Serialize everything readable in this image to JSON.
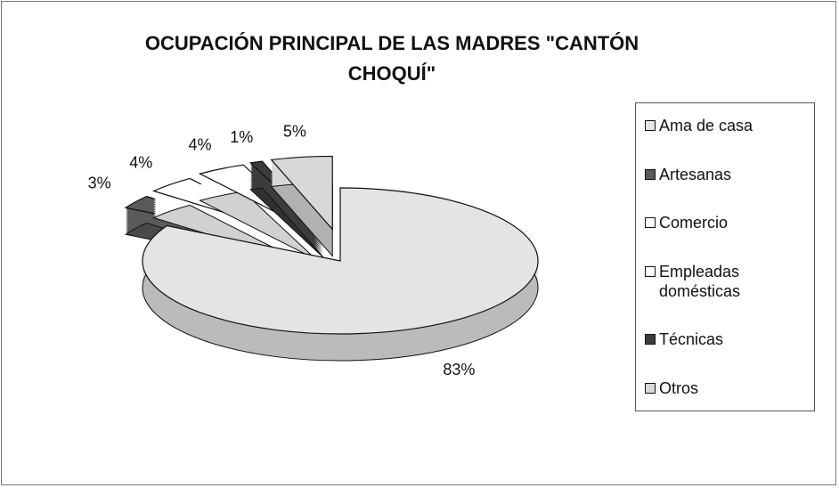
{
  "chart_data": {
    "type": "pie",
    "title": "OCUPACIÓN PRINCIPAL DE LAS MADRES \"CANTÓN CHOQUÍ\"",
    "categories": [
      "Ama de casa",
      "Artesanas",
      "Comercio",
      "Empleadas domésticas",
      "Técnicas",
      "Otros"
    ],
    "values": [
      83,
      3,
      4,
      4,
      1,
      5
    ],
    "value_labels": [
      "83%",
      "3%",
      "4%",
      "4%",
      "1%",
      "5%"
    ],
    "colors": [
      "#e4e4e4",
      "#5a5a5a",
      "#ffffff",
      "#ffffff",
      "#3c3c3c",
      "#d8d8d8"
    ],
    "legend": "right"
  }
}
